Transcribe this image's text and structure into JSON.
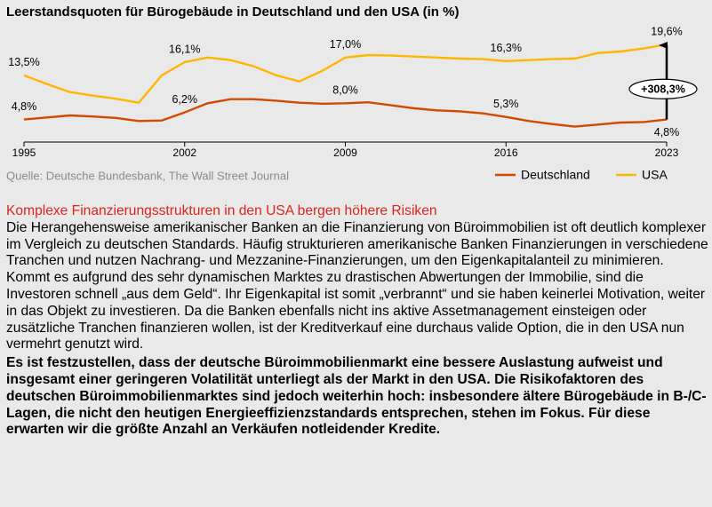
{
  "chart_data": {
    "type": "line",
    "title": "Leerstandsquoten für Bürogebäude in Deutschland und den USA (in %)",
    "x": [
      1995,
      1996,
      1997,
      1998,
      1999,
      2000,
      2001,
      2002,
      2003,
      2004,
      2005,
      2006,
      2007,
      2008,
      2009,
      2010,
      2011,
      2012,
      2013,
      2014,
      2015,
      2016,
      2017,
      2018,
      2019,
      2020,
      2021,
      2022,
      2023
    ],
    "xlim": [
      1995,
      2023
    ],
    "xticks": [
      1995,
      2002,
      2009,
      2016,
      2023
    ],
    "ylim": [
      0,
      21
    ],
    "series": [
      {
        "name": "Deutschland",
        "color": "#d04a02",
        "values": [
          4.8,
          5.2,
          5.6,
          5.4,
          5.1,
          4.5,
          4.6,
          6.2,
          8.0,
          8.8,
          8.8,
          8.5,
          8.1,
          7.9,
          8.0,
          8.2,
          7.6,
          7.0,
          6.6,
          6.4,
          6.0,
          5.3,
          4.5,
          3.9,
          3.4,
          3.8,
          4.2,
          4.3,
          4.8
        ],
        "value_labels": [
          "4,8%",
          null,
          null,
          null,
          null,
          null,
          null,
          "6,2%",
          null,
          null,
          null,
          null,
          null,
          null,
          "8,0%",
          null,
          null,
          null,
          null,
          null,
          null,
          "5,3%",
          null,
          null,
          null,
          null,
          null,
          null,
          "4,8%"
        ]
      },
      {
        "name": "USA",
        "color": "#ffb600",
        "values": [
          13.5,
          11.8,
          10.2,
          9.5,
          8.9,
          8.1,
          13.5,
          16.1,
          17.0,
          16.5,
          15.3,
          13.5,
          12.3,
          14.4,
          17.0,
          17.5,
          17.4,
          17.2,
          17.0,
          16.8,
          16.7,
          16.3,
          16.5,
          16.7,
          16.8,
          17.9,
          18.2,
          18.8,
          19.6
        ],
        "value_labels": [
          "13,5%",
          null,
          null,
          null,
          null,
          null,
          null,
          "16,1%",
          null,
          null,
          null,
          null,
          null,
          null,
          "17,0%",
          null,
          null,
          null,
          null,
          null,
          null,
          "16,3%",
          null,
          null,
          null,
          null,
          null,
          null,
          "19,6%"
        ]
      }
    ],
    "annotation": "+308,3%",
    "source": "Quelle: Deutsche Bundesbank, The Wall Street Journal",
    "legend": "bottom-right"
  },
  "text": {
    "heading": "Komplexe Finanzierungsstrukturen in den USA bergen höhere Risiken",
    "body": "Die Herangehensweise amerikanischer Banken an die Finanzierung von Büroimmobilien ist oft deutlich komplexer im Vergleich zu deutschen Standards. Häufig strukturieren amerikanische Banken Finanzierungen in verschiedene Tranchen und nutzen Nachrang- und Mezzanine-Finanzierungen, um den Eigenkapitalanteil zu minimieren. Kommt es aufgrund des sehr dynamischen Marktes zu drastischen Abwertungen der Immobilie, sind die Investoren schnell „aus dem Geld“. Ihr Eigenkapital ist somit „verbrannt“ und sie haben keinerlei Motivation, weiter in das Objekt zu investieren. Da die Banken ebenfalls nicht ins aktive Assetmanagement einsteigen oder zusätzliche Tranchen finanzieren wollen, ist der Kreditverkauf eine durchaus valide Option, die in den USA nun vermehrt genutzt wird.",
    "conclusion": "Es ist festzustellen, dass der deutsche Büroimmobilienmarkt eine bessere Auslastung aufweist und insgesamt einer geringeren Volatilität unterliegt als der Markt in den USA. Die Risikofaktoren des deutschen Büroimmobilienmarktes sind jedoch weiterhin hoch: insbesondere ältere Bürogebäude in B-/C-Lagen, die nicht den heutigen Energieeffizienzstandards entsprechen, stehen im Fokus. Für diese erwarten wir die größte Anzahl an Verkäufen notleidender Kredite."
  }
}
